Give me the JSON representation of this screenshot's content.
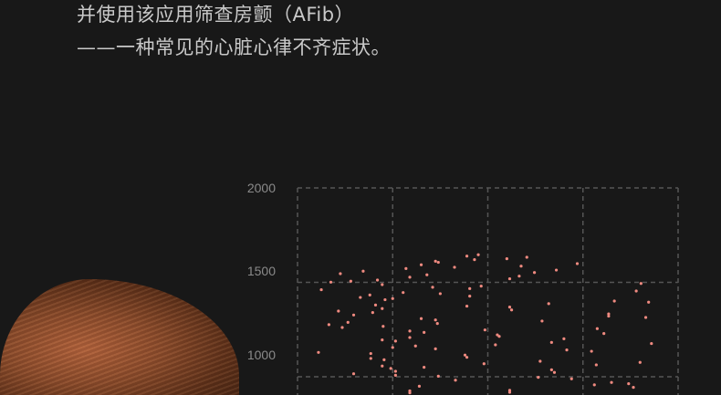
{
  "text": {
    "line1": "并使用该应用筛查房颤（AFib）",
    "line2": "——一种常见的心脏心律不齐症状。"
  },
  "colors": {
    "background": "#181818",
    "point": "#f08a80",
    "grid": "#555555",
    "text": "#c9c9c9"
  },
  "chart_data": {
    "type": "scatter",
    "grid": true,
    "xlim": [
      0,
      4
    ],
    "ylim": [
      903,
      2000
    ],
    "yticks": [
      "2000",
      "1500",
      "1000"
    ],
    "x": [
      0.25,
      0.35,
      0.45,
      0.56,
      0.69,
      0.84,
      0.89,
      0.66,
      0.76,
      0.82,
      0.92,
      1.0,
      0.43,
      0.59,
      0.79,
      0.89,
      0.33,
      0.47,
      0.53,
      0.9,
      0.89,
      1.03,
      1.0,
      0.22,
      0.77,
      0.77,
      0.91,
      0.89,
      0.98,
      1.03,
      1.03,
      0.59,
      1.14,
      1.18,
      1.3,
      1.36,
      1.45,
      1.48,
      1.65,
      1.78,
      1.86,
      1.9,
      1.11,
      1.42,
      1.5,
      1.81,
      1.81,
      1.93,
      1.78,
      1.3,
      1.45,
      1.47,
      1.18,
      1.18,
      1.33,
      1.24,
      1.45,
      1.76,
      1.78,
      1.33,
      1.48,
      1.66,
      1.97,
      1.96,
      2.2,
      2.41,
      2.35,
      2.33,
      2.23,
      2.49,
      2.72,
      2.94,
      2.23,
      2.25,
      2.64,
      2.57,
      2.1,
      2.12,
      2.08,
      2.67,
      2.8,
      2.83,
      2.55,
      2.67,
      2.7,
      2.53,
      2.88,
      3.61,
      3.56,
      3.33,
      3.69,
      3.27,
      3.27,
      3.66,
      3.15,
      3.22,
      3.72,
      3.09,
      3.14,
      3.6,
      3.12,
      3.3,
      3.48,
      3.53,
      1.18,
      1.18,
      1.28,
      2.23,
      2.23,
      2.38,
      0.88
    ],
    "y": [
      1461,
      1501,
      1546,
      1506,
      1559,
      1512,
      1488,
      1420,
      1433,
      1380,
      1408,
      1414,
      1348,
      1327,
      1340,
      1361,
      1276,
      1261,
      1288,
      1267,
      1195,
      1189,
      1155,
      1129,
      1123,
      1097,
      1090,
      1057,
      1044,
      1029,
      1008,
      1016,
      1573,
      1527,
      1593,
      1540,
      1612,
      1606,
      1580,
      1639,
      1620,
      1646,
      1446,
      1474,
      1440,
      1467,
      1427,
      1480,
      1374,
      1308,
      1301,
      1282,
      1242,
      1208,
      1235,
      1163,
      1148,
      1115,
      1103,
      1050,
      1003,
      982,
      1248,
      1069,
      1625,
      1633,
      1586,
      1533,
      1519,
      1552,
      1565,
      1599,
      1369,
      1354,
      1387,
      1295,
      1222,
      1214,
      1169,
      1182,
      1201,
      1142,
      1082,
      1037,
      1023,
      997,
      989,
      1494,
      1454,
      1401,
      1395,
      1333,
      1321,
      1314,
      1255,
      1229,
      1176,
      1135,
      1063,
      1076,
      957,
      970,
      963,
      944,
      925,
      915,
      950,
      928,
      918,
      912,
      905
    ]
  }
}
